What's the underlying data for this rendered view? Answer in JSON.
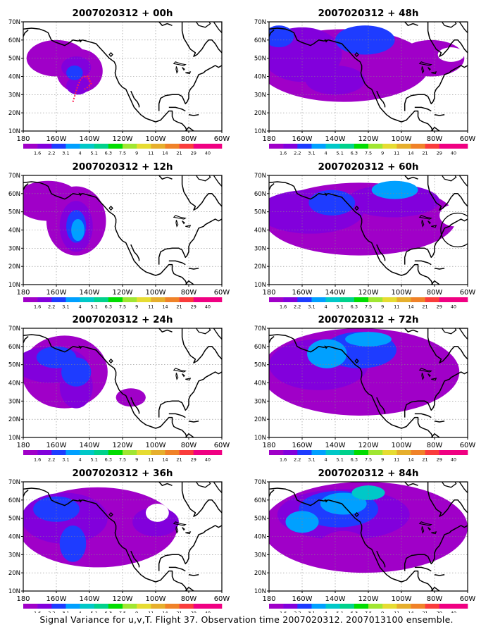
{
  "panels": [
    {
      "title": "2007020312 + 00h"
    },
    {
      "title": "2007020312 + 48h"
    },
    {
      "title": "2007020312 + 12h"
    },
    {
      "title": "2007020312 + 60h"
    },
    {
      "title": "2007020312 + 24h"
    },
    {
      "title": "2007020312 + 72h"
    },
    {
      "title": "2007020312 + 36h"
    },
    {
      "title": "2007020312 + 84h"
    }
  ],
  "axes": {
    "lat_labels": [
      "70N",
      "60N",
      "50N",
      "40N",
      "30N",
      "20N",
      "10N"
    ],
    "lon_labels": [
      "180",
      "160W",
      "140W",
      "120W",
      "100W",
      "80W",
      "60W"
    ]
  },
  "colorbar": {
    "labels": [
      "1.6",
      "2.2",
      "3.1",
      "4",
      "5.1",
      "6.3",
      "7.5",
      "9",
      "11",
      "14",
      "21",
      "29",
      "40"
    ],
    "colors": [
      "#a000c8",
      "#8200dc",
      "#1e3cff",
      "#00a0ff",
      "#00c8c8",
      "#00d28c",
      "#00dc00",
      "#a0e632",
      "#e6dc32",
      "#e6af2d",
      "#f08228",
      "#fa3c3c",
      "#f00082"
    ]
  },
  "field_colors": [
    "#a000c8",
    "#8200dc",
    "#1e3cff",
    "#00a0ff",
    "#00c8c8",
    "#00d28c",
    "#00dc00"
  ],
  "footer": "Signal Variance for u,v,T. Flight 37. Observation time 2007020312. 2007013100 ensemble."
}
